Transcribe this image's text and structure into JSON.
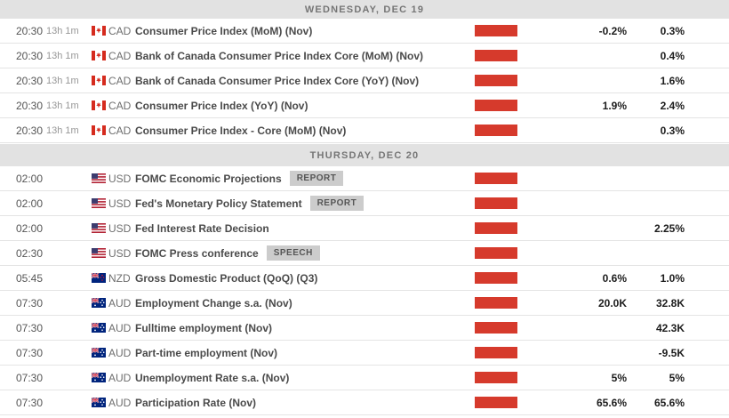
{
  "colors": {
    "impact_red": "#d63a2c",
    "header_bg": "#e2e2e2",
    "header_text": "#767676",
    "row_border": "#e4e4e4",
    "badge_bg": "#cccccc",
    "badge_text": "#555555"
  },
  "columns": {
    "impact_icon": "high-impact-bar-icon",
    "forecast_column": "forecast",
    "previous_column": "previous"
  },
  "sections": [
    {
      "date_label": "WEDNESDAY, DEC 19",
      "rows": [
        {
          "time": "20:30",
          "countdown": "13h 1m",
          "flag_icon": "canada-flag-icon",
          "currency": "CAD",
          "event": "Consumer Price Index (MoM) (Nov)",
          "badge": "",
          "forecast": "-0.2%",
          "previous": "0.3%"
        },
        {
          "time": "20:30",
          "countdown": "13h 1m",
          "flag_icon": "canada-flag-icon",
          "currency": "CAD",
          "event": "Bank of Canada Consumer Price Index Core (MoM) (Nov)",
          "badge": "",
          "forecast": "",
          "previous": "0.4%"
        },
        {
          "time": "20:30",
          "countdown": "13h 1m",
          "flag_icon": "canada-flag-icon",
          "currency": "CAD",
          "event": "Bank of Canada Consumer Price Index Core (YoY) (Nov)",
          "badge": "",
          "forecast": "",
          "previous": "1.6%"
        },
        {
          "time": "20:30",
          "countdown": "13h 1m",
          "flag_icon": "canada-flag-icon",
          "currency": "CAD",
          "event": "Consumer Price Index (YoY) (Nov)",
          "badge": "",
          "forecast": "1.9%",
          "previous": "2.4%"
        },
        {
          "time": "20:30",
          "countdown": "13h 1m",
          "flag_icon": "canada-flag-icon",
          "currency": "CAD",
          "event": "Consumer Price Index - Core (MoM) (Nov)",
          "badge": "",
          "forecast": "",
          "previous": "0.3%"
        }
      ]
    },
    {
      "date_label": "THURSDAY, DEC 20",
      "rows": [
        {
          "time": "02:00",
          "countdown": "",
          "flag_icon": "usa-flag-icon",
          "currency": "USD",
          "event": "FOMC Economic Projections",
          "badge": "REPORT",
          "forecast": "",
          "previous": ""
        },
        {
          "time": "02:00",
          "countdown": "",
          "flag_icon": "usa-flag-icon",
          "currency": "USD",
          "event": "Fed's Monetary Policy Statement",
          "badge": "REPORT",
          "forecast": "",
          "previous": ""
        },
        {
          "time": "02:00",
          "countdown": "",
          "flag_icon": "usa-flag-icon",
          "currency": "USD",
          "event": "Fed Interest Rate Decision",
          "badge": "",
          "forecast": "",
          "previous": "2.25%"
        },
        {
          "time": "02:30",
          "countdown": "",
          "flag_icon": "usa-flag-icon",
          "currency": "USD",
          "event": "FOMC Press conference",
          "badge": "SPEECH",
          "forecast": "",
          "previous": ""
        },
        {
          "time": "05:45",
          "countdown": "",
          "flag_icon": "new-zealand-flag-icon",
          "currency": "NZD",
          "event": "Gross Domestic Product (QoQ) (Q3)",
          "badge": "",
          "forecast": "0.6%",
          "previous": "1.0%"
        },
        {
          "time": "07:30",
          "countdown": "",
          "flag_icon": "australia-flag-icon",
          "currency": "AUD",
          "event": "Employment Change s.a. (Nov)",
          "badge": "",
          "forecast": "20.0K",
          "previous": "32.8K"
        },
        {
          "time": "07:30",
          "countdown": "",
          "flag_icon": "australia-flag-icon",
          "currency": "AUD",
          "event": "Fulltime employment (Nov)",
          "badge": "",
          "forecast": "",
          "previous": "42.3K"
        },
        {
          "time": "07:30",
          "countdown": "",
          "flag_icon": "australia-flag-icon",
          "currency": "AUD",
          "event": "Part-time employment (Nov)",
          "badge": "",
          "forecast": "",
          "previous": "-9.5K"
        },
        {
          "time": "07:30",
          "countdown": "",
          "flag_icon": "australia-flag-icon",
          "currency": "AUD",
          "event": "Unemployment Rate s.a. (Nov)",
          "badge": "",
          "forecast": "5%",
          "previous": "5%"
        },
        {
          "time": "07:30",
          "countdown": "",
          "flag_icon": "australia-flag-icon",
          "currency": "AUD",
          "event": "Participation Rate (Nov)",
          "badge": "",
          "forecast": "65.6%",
          "previous": "65.6%"
        }
      ]
    }
  ]
}
